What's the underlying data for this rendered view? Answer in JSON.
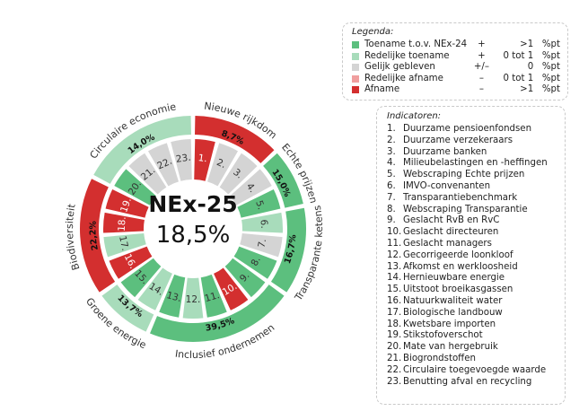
{
  "colors": {
    "toename": "#5cbf7e",
    "redelijke_toename": "#a8dcbb",
    "gelijk": "#d4d4d4",
    "redelijke_afname": "#f09f9f",
    "afname": "#d32f2f"
  },
  "center": {
    "title": "NEx-25",
    "value": "18,5%"
  },
  "legend": {
    "title": "Legenda:",
    "items": [
      {
        "key": "toename",
        "label": "Toename t.o.v. NEx-24",
        "sign": "+",
        "range": ">1",
        "unit": "%pt"
      },
      {
        "key": "redelijke_toename",
        "label": "Redelijke toename",
        "sign": "+",
        "range": "0 tot 1",
        "unit": "%pt"
      },
      {
        "key": "gelijk",
        "label": "Gelijk gebleven",
        "sign": "+/–",
        "range": "0",
        "unit": "%pt"
      },
      {
        "key": "redelijke_afname",
        "label": "Redelijke afname",
        "sign": "–",
        "range": "0 tot 1",
        "unit": "%pt"
      },
      {
        "key": "afname",
        "label": "Afname",
        "sign": "–",
        "range": ">1",
        "unit": "%pt"
      }
    ]
  },
  "indicators": {
    "title": "Indicatoren:",
    "items": [
      {
        "num": "1.",
        "label": "Duurzame pensioenfondsen"
      },
      {
        "num": "2.",
        "label": "Duurzame verzekeraars"
      },
      {
        "num": "3.",
        "label": "Duurzame banken"
      },
      {
        "num": "4.",
        "label": "Milieubelastingen en -heffingen"
      },
      {
        "num": "5.",
        "label": "Webscraping Echte prijzen"
      },
      {
        "num": "6.",
        "label": "IMVO-convenanten"
      },
      {
        "num": "7.",
        "label": "Transparantiebenchmark"
      },
      {
        "num": "8.",
        "label": "Webscraping Transparantie"
      },
      {
        "num": "9.",
        "label": "Geslacht RvB en RvC"
      },
      {
        "num": "10.",
        "label": "Geslacht directeuren"
      },
      {
        "num": "11.",
        "label": "Geslacht managers"
      },
      {
        "num": "12.",
        "label": "Gecorrigeerde loonkloof"
      },
      {
        "num": "13.",
        "label": "Afkomst en werkloosheid"
      },
      {
        "num": "14.",
        "label": "Hernieuwbare energie"
      },
      {
        "num": "15.",
        "label": "Uitstoot broeikasgassen"
      },
      {
        "num": "16.",
        "label": "Natuurkwaliteit water"
      },
      {
        "num": "17.",
        "label": "Biologische landbouw"
      },
      {
        "num": "18.",
        "label": "Kwetsbare importen"
      },
      {
        "num": "19.",
        "label": "Stikstofoverschot"
      },
      {
        "num": "20.",
        "label": "Mate van hergebruik"
      },
      {
        "num": "21.",
        "label": "Biogrondstoffen"
      },
      {
        "num": "22.",
        "label": "Circulaire toegevoegde waarde"
      },
      {
        "num": "23.",
        "label": "Benutting afval en recycling"
      }
    ]
  },
  "chart_data": {
    "type": "pie",
    "center_label": "NEx-25",
    "total": "18,5%",
    "categories": [
      {
        "name": "Nieuwe rijkdom",
        "value": "8,7%",
        "status": "afname",
        "indicators": [
          "1.",
          "2.",
          "3."
        ]
      },
      {
        "name": "Echte prijzen",
        "value": "15,0%",
        "status": "toename",
        "indicators": [
          "4.",
          "5."
        ]
      },
      {
        "name": "Transparante ketens",
        "value": "16,7%",
        "status": "toename",
        "indicators": [
          "6.",
          "7.",
          "8."
        ]
      },
      {
        "name": "Inclusief ondernemen",
        "value": "39,5%",
        "status": "toename",
        "indicators": [
          "9.",
          "10.",
          "11.",
          "12.",
          "13."
        ]
      },
      {
        "name": "Groene energie",
        "value": "13,7%",
        "status": "redelijke_toename",
        "indicators": [
          "14.",
          "15."
        ]
      },
      {
        "name": "Biodiversiteit",
        "value": "22,2%",
        "status": "afname",
        "indicators": [
          "16.",
          "17.",
          "18.",
          "19."
        ]
      },
      {
        "name": "Circulaire economie",
        "value": "14,0%",
        "status": "redelijke_toename",
        "indicators": [
          "20.",
          "21.",
          "22.",
          "23."
        ]
      }
    ],
    "indicators": [
      {
        "label": "1.",
        "status": "afname"
      },
      {
        "label": "2.",
        "status": "gelijk"
      },
      {
        "label": "3.",
        "status": "gelijk"
      },
      {
        "label": "4.",
        "status": "gelijk"
      },
      {
        "label": "5.",
        "status": "toename"
      },
      {
        "label": "6.",
        "status": "redelijke_toename"
      },
      {
        "label": "7.",
        "status": "gelijk"
      },
      {
        "label": "8.",
        "status": "toename"
      },
      {
        "label": "9.",
        "status": "toename"
      },
      {
        "label": "10.",
        "status": "afname"
      },
      {
        "label": "11.",
        "status": "toename"
      },
      {
        "label": "12.",
        "status": "redelijke_toename"
      },
      {
        "label": "13.",
        "status": "toename"
      },
      {
        "label": "14.",
        "status": "redelijke_toename"
      },
      {
        "label": "15.",
        "status": "toename"
      },
      {
        "label": "16.",
        "status": "afname"
      },
      {
        "label": "17.",
        "status": "redelijke_toename"
      },
      {
        "label": "18.",
        "status": "afname"
      },
      {
        "label": "19.",
        "status": "afname"
      },
      {
        "label": "20.",
        "status": "toename"
      },
      {
        "label": "21.",
        "status": "gelijk"
      },
      {
        "label": "22.",
        "status": "gelijk"
      },
      {
        "label": "23.",
        "status": "gelijk"
      }
    ]
  }
}
